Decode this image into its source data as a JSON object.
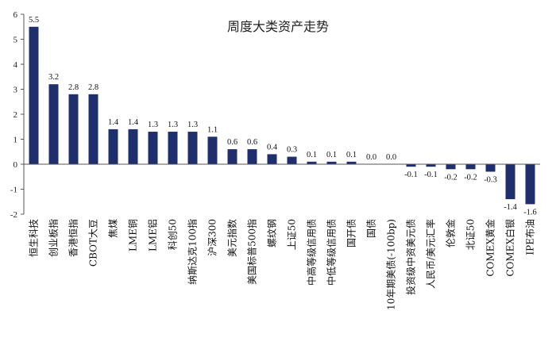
{
  "chart_data": {
    "type": "bar",
    "title": "周度大类资产走势",
    "xlabel": "",
    "ylabel": "",
    "ylim": [
      -2,
      6
    ],
    "yticks": [
      -2,
      -1,
      0,
      1,
      2,
      3,
      4,
      5,
      6
    ],
    "grid": false,
    "bar_color": "#1F2F6E",
    "categories": [
      "恒生科技",
      "创业板指",
      "香港恒指",
      "CBOT大豆",
      "焦煤",
      "LME铜",
      "LME铝",
      "科创50",
      "纳斯达克100指",
      "沪深300",
      "美元指数",
      "美国标普500指",
      "螺纹钢",
      "上证50",
      "中高等级信用债",
      "中低等级信用债",
      "国开债",
      "国债",
      "10年期美债(-100bp)",
      "投资级中资美元债",
      "人民币/美元汇率",
      "伦敦金",
      "北证50",
      "COMEX黄金",
      "COMEX白银",
      "IPE布油"
    ],
    "values": [
      5.5,
      3.2,
      2.8,
      2.8,
      1.4,
      1.4,
      1.3,
      1.3,
      1.3,
      1.1,
      0.6,
      0.6,
      0.4,
      0.3,
      0.1,
      0.1,
      0.1,
      0.0,
      0.0,
      -0.1,
      -0.1,
      -0.2,
      -0.2,
      -0.3,
      -1.4,
      -1.6
    ],
    "labels": [
      "5.5",
      "3.2",
      "2.8",
      "2.8",
      "1.4",
      "1.4",
      "1.3",
      "1.3",
      "1.3",
      "1.1",
      "0.6",
      "0.6",
      "0.4",
      "0.3",
      "0.1",
      "0.1",
      "0.1",
      "0.0",
      "0.0",
      "-0.1",
      "-0.1",
      "-0.2",
      "-0.2",
      "-0.3",
      "-1.4",
      "-1.6"
    ]
  }
}
